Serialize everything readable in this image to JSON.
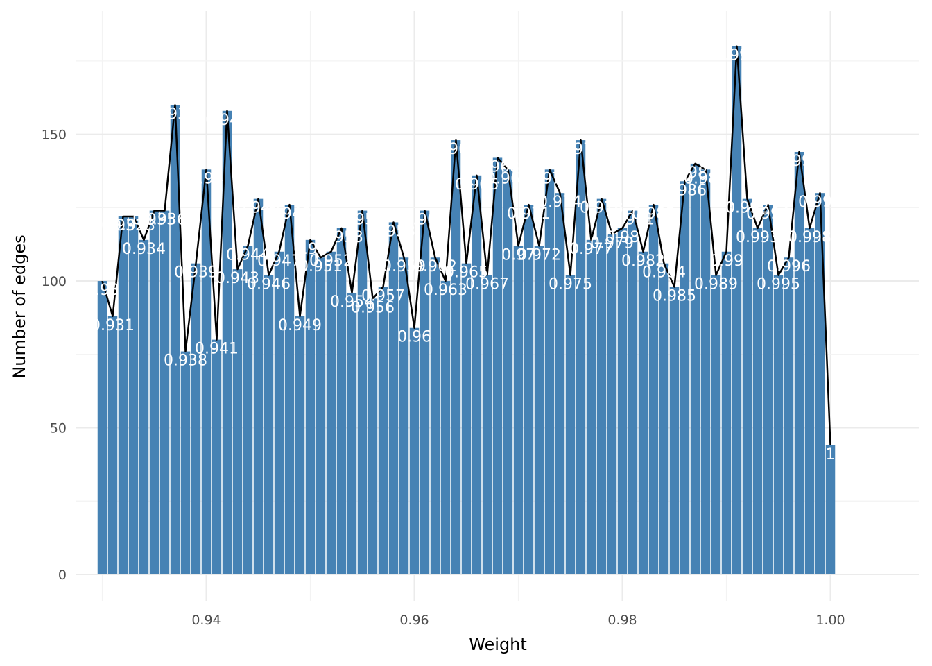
{
  "chart_data": {
    "type": "bar",
    "xlabel": "Weight",
    "ylabel": "Number of edges",
    "xlim": [
      0.9275,
      1.0085
    ],
    "ylim": [
      -9,
      192
    ],
    "x_ticks": [
      0.94,
      0.96,
      0.98,
      1.0
    ],
    "x_tick_labels": [
      "0.94",
      "0.96",
      "0.98",
      "1.00"
    ],
    "y_ticks": [
      0,
      50,
      100,
      150
    ],
    "y_tick_labels": [
      "0",
      "50",
      "100",
      "150"
    ],
    "grid": true,
    "bar_color": "#4682B4",
    "line_color": "#000000",
    "label_color": "#FFFFFF",
    "x": [
      0.93,
      0.931,
      0.932,
      0.933,
      0.934,
      0.935,
      0.936,
      0.937,
      0.938,
      0.939,
      0.94,
      0.941,
      0.942,
      0.943,
      0.944,
      0.945,
      0.946,
      0.947,
      0.948,
      0.949,
      0.95,
      0.951,
      0.952,
      0.953,
      0.954,
      0.955,
      0.956,
      0.957,
      0.958,
      0.959,
      0.96,
      0.961,
      0.962,
      0.963,
      0.964,
      0.965,
      0.966,
      0.967,
      0.968,
      0.969,
      0.97,
      0.971,
      0.972,
      0.973,
      0.974,
      0.975,
      0.976,
      0.977,
      0.978,
      0.979,
      0.98,
      0.981,
      0.982,
      0.983,
      0.984,
      0.985,
      0.986,
      0.987,
      0.988,
      0.989,
      0.99,
      0.991,
      0.992,
      0.993,
      0.994,
      0.995,
      0.996,
      0.997,
      0.998,
      0.999,
      1.0
    ],
    "values": [
      100,
      88,
      122,
      122,
      114,
      124,
      124,
      160,
      76,
      106,
      138,
      80,
      158,
      104,
      112,
      128,
      102,
      110,
      126,
      88,
      114,
      108,
      110,
      118,
      96,
      124,
      94,
      98,
      120,
      108,
      84,
      124,
      108,
      100,
      148,
      106,
      136,
      102,
      142,
      138,
      112,
      126,
      112,
      138,
      130,
      102,
      148,
      114,
      128,
      116,
      118,
      124,
      110,
      126,
      106,
      98,
      134,
      140,
      138,
      102,
      110,
      180,
      128,
      118,
      126,
      102,
      108,
      144,
      118,
      130,
      44
    ],
    "labels": [
      "0.93",
      "0.931",
      "0.932",
      "0.933",
      "0.934",
      "0.935",
      "0.936",
      "0.937",
      "0.938",
      "0.939",
      "0.94",
      "0.941",
      "0.942",
      "0.943",
      "0.944",
      "0.945",
      "0.946",
      "0.947",
      "0.948",
      "0.949",
      "0.95",
      "0.951",
      "0.952",
      "0.953",
      "0.954",
      "0.955",
      "0.956",
      "0.957",
      "0.958",
      "0.959",
      "0.96",
      "0.961",
      "0.962",
      "0.963",
      "0.964",
      "0.965",
      "0.966",
      "0.967",
      "0.968",
      "0.969",
      "0.97",
      "0.971",
      "0.972",
      "0.973",
      "0.974",
      "0.975",
      "0.976",
      "0.977",
      "0.978",
      "0.979",
      "0.98",
      "0.981",
      "0.982",
      "0.983",
      "0.984",
      "0.985",
      "0.986",
      "0.987",
      "0.988",
      "0.989",
      "0.99",
      "0.991",
      "0.992",
      "0.993",
      "0.994",
      "0.995",
      "0.996",
      "0.997",
      "0.998",
      "0.999",
      "1"
    ]
  }
}
